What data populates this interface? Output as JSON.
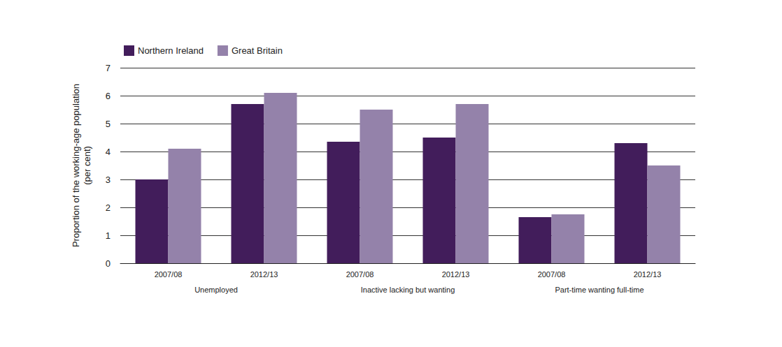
{
  "chart_data": {
    "type": "bar",
    "categories": [
      "2007/08",
      "2012/13",
      "2007/08",
      "2012/13",
      "2007/08",
      "2012/13"
    ],
    "category_groups": [
      "Unemployed",
      "Inactive lacking but wanting",
      "Part-time wanting full-time"
    ],
    "series": [
      {
        "name": "Northern Ireland",
        "color": "#421d5b",
        "values": [
          3.0,
          5.7,
          4.35,
          4.5,
          1.65,
          4.3
        ]
      },
      {
        "name": "Great Britain",
        "color": "#9482aa",
        "values": [
          4.1,
          6.1,
          5.5,
          5.7,
          1.75,
          3.5
        ]
      }
    ],
    "y_label": "Proportion of the working-age population\n(per cent)",
    "ylim": [
      0,
      7
    ],
    "yticks": [
      0,
      1,
      2,
      3,
      4,
      5,
      6,
      7
    ],
    "grid": true,
    "legend": "top-left"
  }
}
